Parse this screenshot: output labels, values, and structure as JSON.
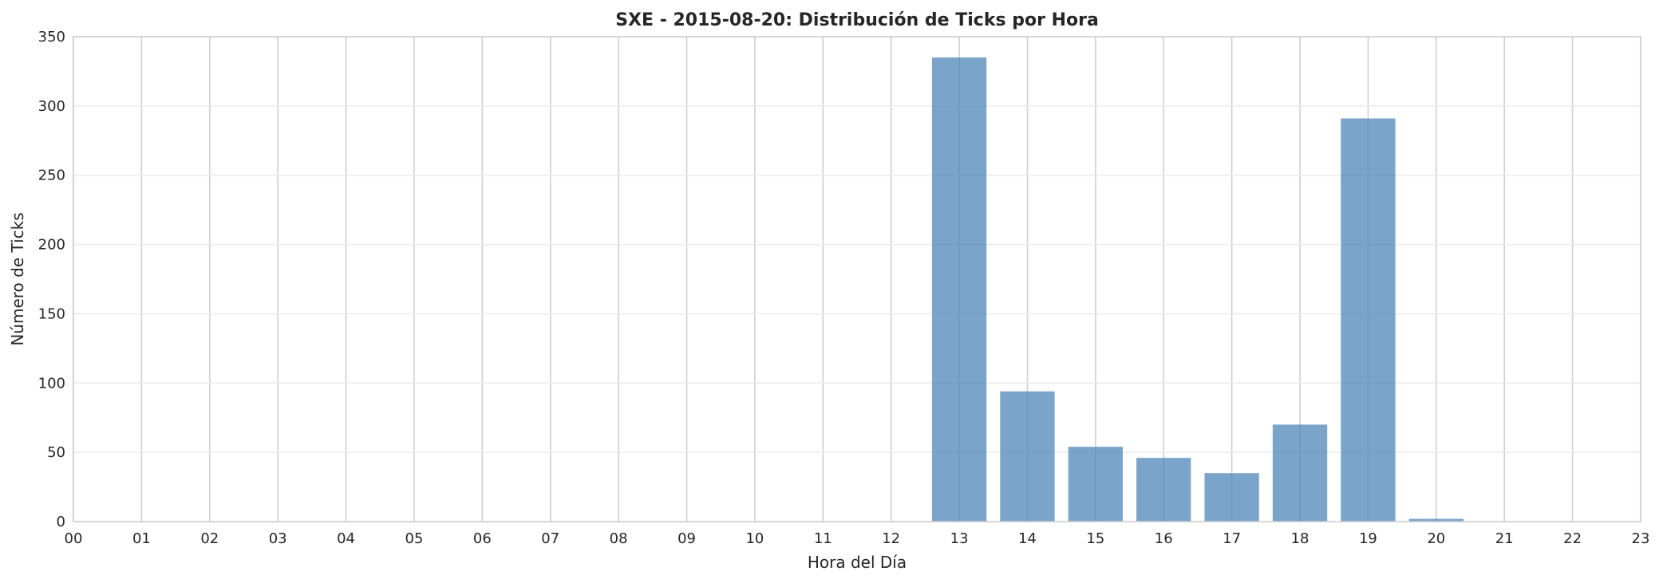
{
  "chart_data": {
    "type": "bar",
    "title": "SXE - 2015-08-20: Distribución de Ticks por Hora",
    "xlabel": "Hora del Día",
    "ylabel": "Número de Ticks",
    "categories": [
      "00",
      "01",
      "02",
      "03",
      "04",
      "05",
      "06",
      "07",
      "08",
      "09",
      "10",
      "11",
      "12",
      "13",
      "14",
      "15",
      "16",
      "17",
      "18",
      "19",
      "20",
      "21",
      "22",
      "23"
    ],
    "bars": [
      {
        "hour": "13",
        "value": 335
      },
      {
        "hour": "14",
        "value": 94
      },
      {
        "hour": "15",
        "value": 54
      },
      {
        "hour": "16",
        "value": 46
      },
      {
        "hour": "17",
        "value": 35
      },
      {
        "hour": "18",
        "value": 70
      },
      {
        "hour": "19",
        "value": 291
      },
      {
        "hour": "20",
        "value": 2
      }
    ],
    "xlim": [
      0,
      23
    ],
    "ylim": [
      0,
      350
    ],
    "yticks": [
      0,
      50,
      100,
      150,
      200,
      250,
      300,
      350
    ],
    "grid": true,
    "bar_color": "#4f86b8",
    "legend": "none"
  }
}
